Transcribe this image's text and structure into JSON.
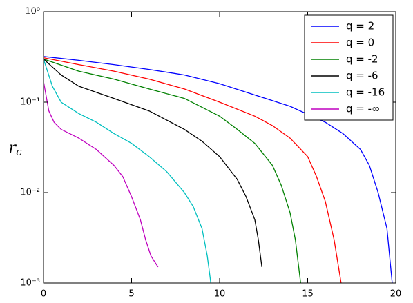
{
  "chart_data": {
    "type": "line",
    "ylabel": {
      "symbol": "r",
      "subscript": "c"
    },
    "xlim": [
      0,
      20
    ],
    "xticks": [
      0,
      5,
      10,
      15,
      20
    ],
    "ylim": [
      0.001,
      1
    ],
    "yticks": [
      {
        "value": 0.001,
        "label": "10⁻³"
      },
      {
        "value": 0.01,
        "label": "10⁻²"
      },
      {
        "value": 0.1,
        "label": "10⁻¹"
      },
      {
        "value": 1,
        "label": "10⁰"
      }
    ],
    "log_y": true,
    "legend": "upper right",
    "series": [
      {
        "name": "q = 2",
        "color": "#0000ff",
        "x": [
          0,
          2,
          4,
          6,
          8,
          10,
          12,
          14,
          16,
          17,
          18,
          18.5,
          19,
          19.5,
          19.8
        ],
        "values": [
          0.32,
          0.29,
          0.26,
          0.23,
          0.2,
          0.16,
          0.12,
          0.09,
          0.06,
          0.045,
          0.03,
          0.02,
          0.01,
          0.004,
          0.001
        ]
      },
      {
        "name": "q = 0",
        "color": "#ff0000",
        "x": [
          0,
          2,
          4,
          6,
          8,
          10,
          12,
          13,
          14,
          15,
          15.5,
          16,
          16.5,
          16.9
        ],
        "values": [
          0.31,
          0.26,
          0.22,
          0.18,
          0.14,
          0.1,
          0.07,
          0.055,
          0.04,
          0.025,
          0.015,
          0.008,
          0.003,
          0.001
        ]
      },
      {
        "name": "q = -2",
        "color": "#008000",
        "x": [
          0,
          2,
          4,
          6,
          8,
          10,
          11,
          12,
          13,
          13.5,
          14,
          14.3,
          14.6
        ],
        "values": [
          0.3,
          0.22,
          0.18,
          0.14,
          0.11,
          0.07,
          0.05,
          0.035,
          0.02,
          0.012,
          0.006,
          0.003,
          0.001
        ]
      },
      {
        "name": "q = -6",
        "color": "#000000",
        "x": [
          0,
          1,
          2,
          4,
          6,
          8,
          9,
          10,
          11,
          11.5,
          12,
          12.2,
          12.4
        ],
        "values": [
          0.3,
          0.2,
          0.15,
          0.11,
          0.08,
          0.05,
          0.037,
          0.025,
          0.014,
          0.009,
          0.005,
          0.003,
          0.0015
        ]
      },
      {
        "name": "q = -16",
        "color": "#00bfbf",
        "x": [
          0,
          0.5,
          1,
          2,
          3,
          4,
          5,
          6,
          7,
          8,
          8.5,
          9,
          9.3,
          9.5
        ],
        "values": [
          0.3,
          0.15,
          0.1,
          0.075,
          0.06,
          0.045,
          0.035,
          0.025,
          0.017,
          0.01,
          0.007,
          0.004,
          0.002,
          0.001
        ]
      },
      {
        "name": "q = -∞",
        "color": "#bf00bf",
        "x": [
          0,
          0.3,
          0.6,
          1,
          2,
          3,
          4,
          4.5,
          5,
          5.5,
          5.8,
          6.1,
          6.5
        ],
        "values": [
          0.17,
          0.08,
          0.06,
          0.05,
          0.04,
          0.03,
          0.02,
          0.015,
          0.009,
          0.005,
          0.003,
          0.002,
          0.0015
        ]
      }
    ]
  }
}
